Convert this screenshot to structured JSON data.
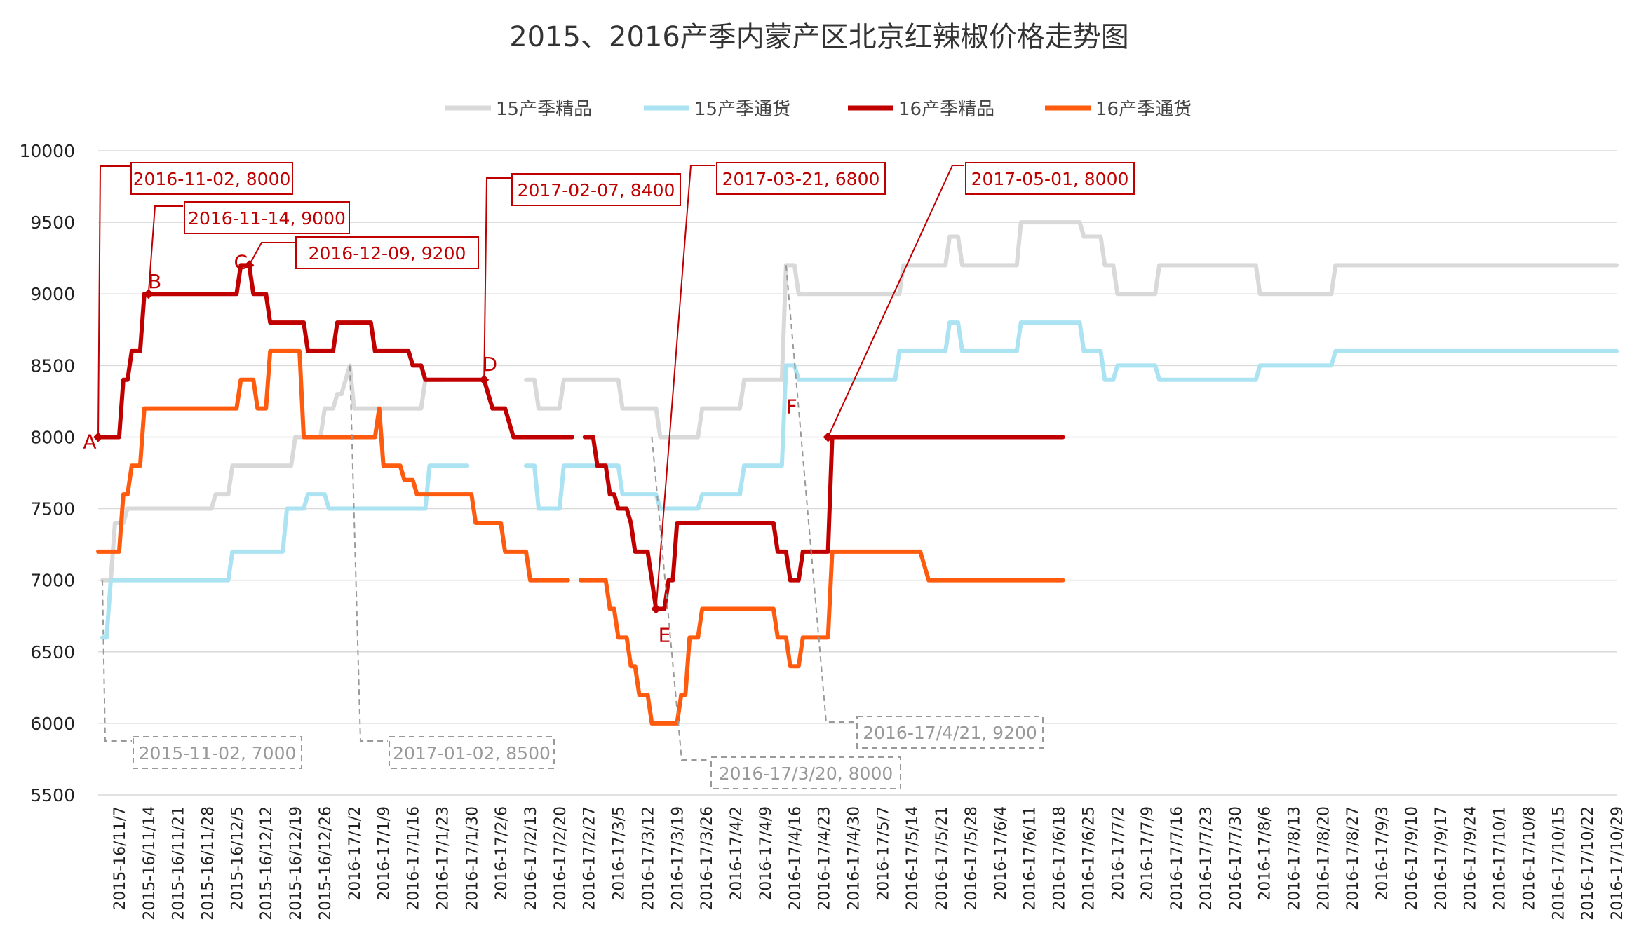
{
  "chart_data": {
    "type": "line",
    "title": "2015、2016产季内蒙产区北京红辣椒价格走势图",
    "xlabel": "",
    "ylabel": "",
    "ylim": [
      5500,
      10000
    ],
    "yticks": [
      5500,
      6000,
      6500,
      7000,
      7500,
      8000,
      8500,
      9000,
      9500,
      10000
    ],
    "grid": "horizontal",
    "legend_position": "top",
    "x_range_days": [
      0,
      362
    ],
    "x_tick_labels": [
      "2015-16/11/7",
      "2015-16/11/14",
      "2015-16/11/21",
      "2015-16/11/28",
      "2015-16/12/5",
      "2015-16/12/12",
      "2015-16/12/19",
      "2015-16/12/26",
      "2016-17/1/2",
      "2016-17/1/9",
      "2016-17/1/16",
      "2016-17/1/23",
      "2016-17/1/30",
      "2016-17/2/6",
      "2016-17/2/13",
      "2016-17/2/20",
      "2016-17/2/27",
      "2016-17/3/5",
      "2016-17/3/12",
      "2016-17/3/19",
      "2016-17/3/26",
      "2016-17/4/2",
      "2016-17/4/9",
      "2016-17/4/16",
      "2016-17/4/23",
      "2016-17/4/30",
      "2016-17/5/7",
      "2016-17/5/14",
      "2016-17/5/21",
      "2016-17/5/28",
      "2016-17/6/4",
      "2016-17/6/11",
      "2016-17/6/18",
      "2016-17/6/25",
      "2016-17/7/2",
      "2016-17/7/9",
      "2016-17/7/16",
      "2016-17/7/23",
      "2016-17/7/30",
      "2016-17/8/6",
      "2016-17/8/13",
      "2016-17/8/20",
      "2016-17/8/27",
      "2016-17/9/3",
      "2016-17/9/10",
      "2016-17/9/17",
      "2016-17/9/24",
      "2016-17/10/1",
      "2016-17/10/8",
      "2016-17/10/15",
      "2016-17/10/22",
      "2016-17/10/29"
    ],
    "series": [
      {
        "name": "15产季精品",
        "color": "#d9d9d9",
        "segments": [
          [
            [
              1,
              7000
            ],
            [
              3,
              7000
            ],
            [
              4,
              7400
            ],
            [
              6,
              7400
            ],
            [
              7,
              7500
            ],
            [
              27,
              7500
            ],
            [
              28,
              7600
            ],
            [
              31,
              7600
            ],
            [
              32,
              7800
            ],
            [
              46,
              7800
            ],
            [
              47,
              8000
            ],
            [
              53,
              8000
            ],
            [
              54,
              8200
            ],
            [
              56,
              8200
            ],
            [
              57,
              8300
            ],
            [
              58,
              8300
            ],
            [
              59,
              8400
            ],
            [
              60,
              8500
            ],
            [
              61,
              8200
            ],
            [
              77,
              8200
            ],
            [
              78,
              8400
            ],
            [
              82,
              8400
            ]
          ],
          [
            [
              102,
              8400
            ],
            [
              104,
              8400
            ],
            [
              105,
              8200
            ],
            [
              110,
              8200
            ],
            [
              111,
              8400
            ],
            [
              124,
              8400
            ],
            [
              125,
              8200
            ],
            [
              133,
              8200
            ],
            [
              134,
              8000
            ],
            [
              143,
              8000
            ],
            [
              144,
              8200
            ],
            [
              153,
              8200
            ],
            [
              154,
              8400
            ],
            [
              163,
              8400
            ],
            [
              164,
              9200
            ],
            [
              166,
              9200
            ],
            [
              167,
              9000
            ],
            [
              191,
              9000
            ],
            [
              192,
              9200
            ],
            [
              202,
              9200
            ],
            [
              203,
              9400
            ],
            [
              205,
              9400
            ],
            [
              206,
              9200
            ],
            [
              219,
              9200
            ],
            [
              220,
              9500
            ],
            [
              234,
              9500
            ],
            [
              235,
              9400
            ],
            [
              239,
              9400
            ],
            [
              240,
              9200
            ],
            [
              242,
              9200
            ],
            [
              243,
              9000
            ],
            [
              252,
              9000
            ],
            [
              253,
              9200
            ],
            [
              276,
              9200
            ],
            [
              277,
              9000
            ],
            [
              294,
              9000
            ],
            [
              295,
              9200
            ],
            [
              362,
              9200
            ]
          ]
        ]
      },
      {
        "name": "15产季通货",
        "color": "#abe3f2",
        "segments": [
          [
            [
              1,
              6600
            ],
            [
              2,
              6600
            ],
            [
              3,
              7000
            ],
            [
              31,
              7000
            ],
            [
              32,
              7200
            ],
            [
              44,
              7200
            ],
            [
              45,
              7500
            ],
            [
              49,
              7500
            ],
            [
              50,
              7600
            ],
            [
              54,
              7600
            ],
            [
              55,
              7500
            ],
            [
              78,
              7500
            ],
            [
              79,
              7800
            ],
            [
              88,
              7800
            ]
          ],
          [
            [
              102,
              7800
            ],
            [
              104,
              7800
            ],
            [
              105,
              7500
            ],
            [
              110,
              7500
            ],
            [
              111,
              7800
            ],
            [
              124,
              7800
            ],
            [
              125,
              7600
            ],
            [
              133,
              7600
            ],
            [
              134,
              7500
            ],
            [
              143,
              7500
            ],
            [
              144,
              7600
            ],
            [
              153,
              7600
            ],
            [
              154,
              7800
            ],
            [
              163,
              7800
            ],
            [
              164,
              8500
            ],
            [
              166,
              8500
            ],
            [
              167,
              8400
            ],
            [
              190,
              8400
            ],
            [
              191,
              8600
            ],
            [
              202,
              8600
            ],
            [
              203,
              8800
            ],
            [
              205,
              8800
            ],
            [
              206,
              8600
            ],
            [
              219,
              8600
            ],
            [
              220,
              8800
            ],
            [
              234,
              8800
            ],
            [
              235,
              8600
            ],
            [
              239,
              8600
            ],
            [
              240,
              8400
            ],
            [
              242,
              8400
            ],
            [
              243,
              8500
            ],
            [
              252,
              8500
            ],
            [
              253,
              8400
            ],
            [
              276,
              8400
            ],
            [
              277,
              8500
            ],
            [
              294,
              8500
            ],
            [
              295,
              8600
            ],
            [
              362,
              8600
            ]
          ]
        ]
      },
      {
        "name": "16产季精品",
        "color": "#c00000",
        "segments": [
          [
            [
              0,
              8000
            ],
            [
              5,
              8000
            ],
            [
              6,
              8400
            ],
            [
              7,
              8400
            ],
            [
              8,
              8600
            ],
            [
              10,
              8600
            ],
            [
              11,
              9000
            ],
            [
              12,
              9000
            ],
            [
              25,
              9000
            ],
            [
              33,
              9000
            ],
            [
              34,
              9200
            ],
            [
              36,
              9200
            ],
            [
              37,
              9000
            ],
            [
              40,
              9000
            ],
            [
              41,
              8800
            ],
            [
              49,
              8800
            ],
            [
              50,
              8600
            ],
            [
              56,
              8600
            ],
            [
              57,
              8800
            ],
            [
              65,
              8800
            ],
            [
              66,
              8600
            ],
            [
              74,
              8600
            ],
            [
              75,
              8500
            ],
            [
              77,
              8500
            ],
            [
              78,
              8400
            ],
            [
              92,
              8400
            ],
            [
              94,
              8200
            ],
            [
              97,
              8200
            ],
            [
              99,
              8000
            ],
            [
              113,
              8000
            ]
          ],
          [
            [
              116,
              8000
            ],
            [
              118,
              8000
            ],
            [
              119,
              7800
            ],
            [
              121,
              7800
            ],
            [
              122,
              7600
            ],
            [
              123,
              7600
            ],
            [
              124,
              7500
            ],
            [
              126,
              7500
            ],
            [
              127,
              7400
            ],
            [
              128,
              7200
            ],
            [
              131,
              7200
            ],
            [
              132,
              7000
            ],
            [
              133,
              6800
            ],
            [
              135,
              6800
            ],
            [
              136,
              7000
            ],
            [
              137,
              7000
            ],
            [
              138,
              7400
            ],
            [
              144,
              7400
            ],
            [
              161,
              7400
            ],
            [
              162,
              7200
            ],
            [
              164,
              7200
            ],
            [
              165,
              7000
            ],
            [
              167,
              7000
            ],
            [
              168,
              7200
            ],
            [
              174,
              7200
            ],
            [
              175,
              8000
            ],
            [
              178,
              8000
            ],
            [
              230,
              8000
            ]
          ]
        ]
      },
      {
        "name": "16产季通货",
        "color": "#ff5b0f",
        "segments": [
          [
            [
              0,
              7200
            ],
            [
              5,
              7200
            ],
            [
              6,
              7600
            ],
            [
              7,
              7600
            ],
            [
              8,
              7800
            ],
            [
              10,
              7800
            ],
            [
              11,
              8200
            ],
            [
              33,
              8200
            ],
            [
              34,
              8400
            ],
            [
              37,
              8400
            ],
            [
              38,
              8200
            ],
            [
              40,
              8200
            ],
            [
              41,
              8600
            ],
            [
              48,
              8600
            ],
            [
              49,
              8000
            ],
            [
              66,
              8000
            ],
            [
              67,
              8200
            ],
            [
              68,
              7800
            ],
            [
              72,
              7800
            ],
            [
              73,
              7700
            ],
            [
              75,
              7700
            ],
            [
              76,
              7600
            ],
            [
              89,
              7600
            ],
            [
              90,
              7400
            ],
            [
              96,
              7400
            ],
            [
              97,
              7200
            ],
            [
              102,
              7200
            ],
            [
              103,
              7000
            ],
            [
              112,
              7000
            ]
          ],
          [
            [
              115,
              7000
            ],
            [
              121,
              7000
            ],
            [
              122,
              6800
            ],
            [
              123,
              6800
            ],
            [
              124,
              6600
            ],
            [
              126,
              6600
            ],
            [
              127,
              6400
            ],
            [
              128,
              6400
            ],
            [
              129,
              6200
            ],
            [
              131,
              6200
            ],
            [
              132,
              6000
            ],
            [
              138,
              6000
            ],
            [
              139,
              6200
            ],
            [
              140,
              6200
            ],
            [
              141,
              6600
            ],
            [
              143,
              6600
            ],
            [
              144,
              6800
            ],
            [
              161,
              6800
            ],
            [
              162,
              6600
            ],
            [
              164,
              6600
            ],
            [
              165,
              6400
            ],
            [
              167,
              6400
            ],
            [
              168,
              6600
            ],
            [
              174,
              6600
            ],
            [
              175,
              7200
            ],
            [
              196,
              7200
            ],
            [
              198,
              7000
            ],
            [
              230,
              7000
            ]
          ]
        ]
      }
    ],
    "annotations": [
      {
        "letter": "A",
        "label": "2016-11-02, 8000",
        "x_day": 0,
        "y": 8000
      },
      {
        "letter": "B",
        "label": "2016-11-14, 9000",
        "x_day": 12,
        "y": 9000
      },
      {
        "letter": "C",
        "label": "2016-12-09, 9200",
        "x_day": 36,
        "y": 9200
      },
      {
        "letter": "D",
        "label": "2017-02-07, 8400",
        "x_day": 92,
        "y": 8400
      },
      {
        "letter": "E",
        "label": "2017-03-21, 6800",
        "x_day": 133,
        "y": 6800
      },
      {
        "letter": "F",
        "label": "2017-05-01, 8000",
        "x_day": 174,
        "y": 8000
      },
      {
        "label": "2015-11-02, 7000",
        "x_day": 1,
        "y": 7000
      },
      {
        "label": "2017-01-02, 8500",
        "x_day": 60,
        "y": 8500
      },
      {
        "label": "2016-17/3/20, 8000",
        "x_day": 132,
        "y": 8000
      },
      {
        "label": "2016-17/4/21, 9200",
        "x_day": 164,
        "y": 9200
      }
    ]
  }
}
